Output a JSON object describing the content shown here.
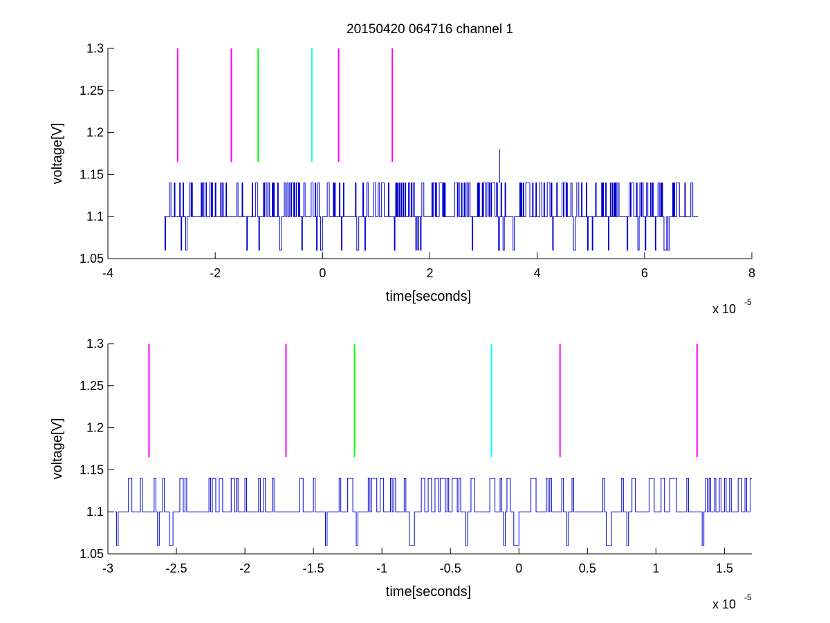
{
  "chart_data": [
    {
      "type": "line",
      "title": "20150420 064716 channel 1",
      "xlabel": "time[seconds]",
      "ylabel": "voltage[V]",
      "x_multiplier_base": "x 10",
      "x_multiplier_exp": "-5",
      "xlim": [
        -4,
        8
      ],
      "ylim": [
        1.05,
        1.3
      ],
      "xticks": [
        -4,
        -2,
        0,
        2,
        4,
        6,
        8
      ],
      "xtick_labels": [
        "-4",
        "-2",
        "0",
        "2",
        "4",
        "6",
        "8"
      ],
      "yticks": [
        1.05,
        1.1,
        1.15,
        1.2,
        1.25,
        1.3
      ],
      "ytick_labels": [
        "1.05",
        "1.1",
        "1.15",
        "1.2",
        "1.25",
        "1.3"
      ],
      "signal": {
        "color": "#0000cc",
        "x_start": -2.95,
        "x_end": 7.0,
        "levels": [
          1.06,
          1.1,
          1.14
        ],
        "spike": {
          "x": 3.3,
          "y": 1.18
        }
      },
      "markers": [
        {
          "x": -2.7,
          "y_from": 1.165,
          "y_to": 1.3,
          "color": "#ff00ff"
        },
        {
          "x": -1.7,
          "y_from": 1.165,
          "y_to": 1.3,
          "color": "#ff00ff"
        },
        {
          "x": -1.2,
          "y_from": 1.165,
          "y_to": 1.3,
          "color": "#00ff00"
        },
        {
          "x": -0.2,
          "y_from": 1.165,
          "y_to": 1.3,
          "color": "#00ffff"
        },
        {
          "x": 0.3,
          "y_from": 1.165,
          "y_to": 1.3,
          "color": "#ff00ff"
        },
        {
          "x": 1.3,
          "y_from": 1.165,
          "y_to": 1.3,
          "color": "#ff00ff"
        }
      ]
    },
    {
      "type": "line",
      "title": "",
      "xlabel": "time[seconds]",
      "ylabel": "voltage[V]",
      "x_multiplier_base": "x 10",
      "x_multiplier_exp": "-5",
      "xlim": [
        -3.0,
        1.7
      ],
      "ylim": [
        1.05,
        1.3
      ],
      "xticks": [
        -3,
        -2.5,
        -2,
        -1.5,
        -1,
        -0.5,
        0,
        0.5,
        1,
        1.5
      ],
      "xtick_labels": [
        "-3",
        "-2.5",
        "-2",
        "-1.5",
        "-1",
        "-0.5",
        "0",
        "0.5",
        "1",
        "1.5"
      ],
      "yticks": [
        1.05,
        1.1,
        1.15,
        1.2,
        1.25,
        1.3
      ],
      "ytick_labels": [
        "1.05",
        "1.1",
        "1.15",
        "1.2",
        "1.25",
        "1.3"
      ],
      "signal": {
        "color": "#0000cc",
        "x_start": -2.95,
        "x_end": 1.7,
        "levels": [
          1.06,
          1.1,
          1.14
        ]
      },
      "markers": [
        {
          "x": -2.7,
          "y_from": 1.165,
          "y_to": 1.3,
          "color": "#ff00ff"
        },
        {
          "x": -1.7,
          "y_from": 1.165,
          "y_to": 1.3,
          "color": "#ff00ff"
        },
        {
          "x": -1.2,
          "y_from": 1.165,
          "y_to": 1.3,
          "color": "#00ff00"
        },
        {
          "x": -0.2,
          "y_from": 1.165,
          "y_to": 1.3,
          "color": "#00ffff"
        },
        {
          "x": 0.3,
          "y_from": 1.165,
          "y_to": 1.3,
          "color": "#ff00ff"
        },
        {
          "x": 1.3,
          "y_from": 1.165,
          "y_to": 1.3,
          "color": "#ff00ff"
        }
      ]
    }
  ]
}
